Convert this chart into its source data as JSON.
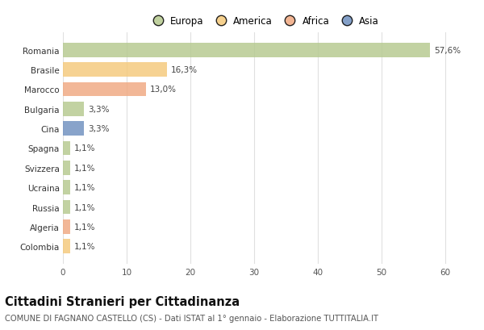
{
  "countries": [
    "Romania",
    "Brasile",
    "Marocco",
    "Bulgaria",
    "Cina",
    "Spagna",
    "Svizzera",
    "Ucraina",
    "Russia",
    "Algeria",
    "Colombia"
  ],
  "values": [
    57.6,
    16.3,
    13.0,
    3.3,
    3.3,
    1.1,
    1.1,
    1.1,
    1.1,
    1.1,
    1.1
  ],
  "labels": [
    "57,6%",
    "16,3%",
    "13,0%",
    "3,3%",
    "3,3%",
    "1,1%",
    "1,1%",
    "1,1%",
    "1,1%",
    "1,1%",
    "1,1%"
  ],
  "colors": [
    "#b5c98e",
    "#f5c97a",
    "#f0a880",
    "#b5c98e",
    "#6e8fbf",
    "#b5c98e",
    "#b5c98e",
    "#b5c98e",
    "#b5c98e",
    "#f0a880",
    "#f5c97a"
  ],
  "legend_labels": [
    "Europa",
    "America",
    "Africa",
    "Asia"
  ],
  "legend_colors": [
    "#b5c98e",
    "#f5c97a",
    "#f0a880",
    "#6e8fbf"
  ],
  "title": "Cittadini Stranieri per Cittadinanza",
  "subtitle": "COMUNE DI FAGNANO CASTELLO (CS) - Dati ISTAT al 1° gennaio - Elaborazione TUTTITALIA.IT",
  "xlim": [
    0,
    63
  ],
  "xticks": [
    0,
    10,
    20,
    30,
    40,
    50,
    60
  ],
  "background_color": "#ffffff",
  "grid_color": "#e0e0e0",
  "bar_height": 0.72,
  "title_fontsize": 10.5,
  "subtitle_fontsize": 7.2,
  "label_fontsize": 7.5,
  "tick_fontsize": 7.5,
  "legend_fontsize": 8.5
}
